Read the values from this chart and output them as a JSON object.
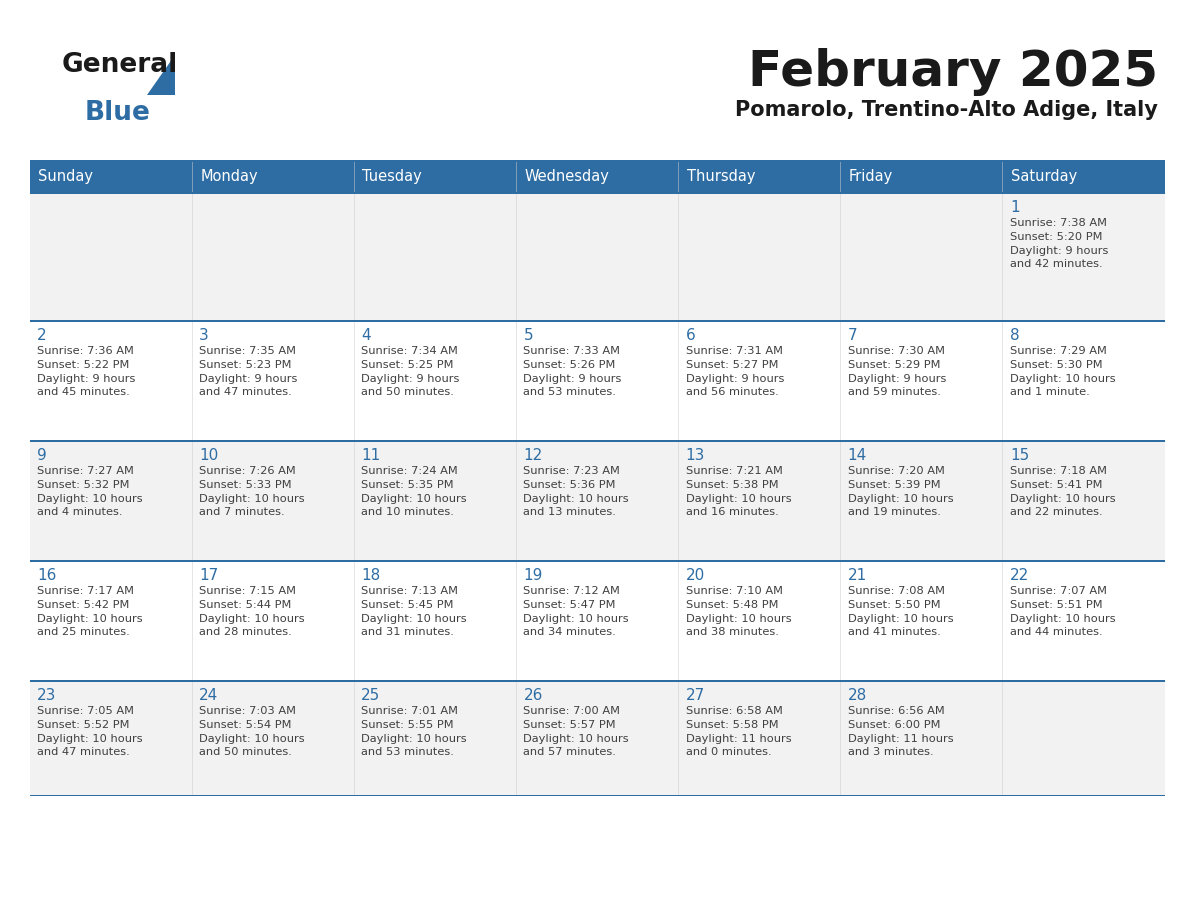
{
  "title": "February 2025",
  "subtitle": "Pomarolo, Trentino-Alto Adige, Italy",
  "days_of_week": [
    "Sunday",
    "Monday",
    "Tuesday",
    "Wednesday",
    "Thursday",
    "Friday",
    "Saturday"
  ],
  "header_bg": "#2E6DA4",
  "header_fg": "#FFFFFF",
  "cell_bg_odd": "#F2F2F2",
  "cell_bg_even": "#FFFFFF",
  "cell_border_color": "#2E6DA4",
  "day_number_color": "#2E6DA4",
  "text_color": "#404040",
  "logo_general_color": "#1a1a1a",
  "logo_blue_color": "#2E6DA4",
  "calendar": [
    [
      null,
      null,
      null,
      null,
      null,
      null,
      {
        "day": "1",
        "sunrise": "7:38 AM",
        "sunset": "5:20 PM",
        "daylight": "9 hours\nand 42 minutes."
      }
    ],
    [
      {
        "day": "2",
        "sunrise": "7:36 AM",
        "sunset": "5:22 PM",
        "daylight": "9 hours\nand 45 minutes."
      },
      {
        "day": "3",
        "sunrise": "7:35 AM",
        "sunset": "5:23 PM",
        "daylight": "9 hours\nand 47 minutes."
      },
      {
        "day": "4",
        "sunrise": "7:34 AM",
        "sunset": "5:25 PM",
        "daylight": "9 hours\nand 50 minutes."
      },
      {
        "day": "5",
        "sunrise": "7:33 AM",
        "sunset": "5:26 PM",
        "daylight": "9 hours\nand 53 minutes."
      },
      {
        "day": "6",
        "sunrise": "7:31 AM",
        "sunset": "5:27 PM",
        "daylight": "9 hours\nand 56 minutes."
      },
      {
        "day": "7",
        "sunrise": "7:30 AM",
        "sunset": "5:29 PM",
        "daylight": "9 hours\nand 59 minutes."
      },
      {
        "day": "8",
        "sunrise": "7:29 AM",
        "sunset": "5:30 PM",
        "daylight": "10 hours\nand 1 minute."
      }
    ],
    [
      {
        "day": "9",
        "sunrise": "7:27 AM",
        "sunset": "5:32 PM",
        "daylight": "10 hours\nand 4 minutes."
      },
      {
        "day": "10",
        "sunrise": "7:26 AM",
        "sunset": "5:33 PM",
        "daylight": "10 hours\nand 7 minutes."
      },
      {
        "day": "11",
        "sunrise": "7:24 AM",
        "sunset": "5:35 PM",
        "daylight": "10 hours\nand 10 minutes."
      },
      {
        "day": "12",
        "sunrise": "7:23 AM",
        "sunset": "5:36 PM",
        "daylight": "10 hours\nand 13 minutes."
      },
      {
        "day": "13",
        "sunrise": "7:21 AM",
        "sunset": "5:38 PM",
        "daylight": "10 hours\nand 16 minutes."
      },
      {
        "day": "14",
        "sunrise": "7:20 AM",
        "sunset": "5:39 PM",
        "daylight": "10 hours\nand 19 minutes."
      },
      {
        "day": "15",
        "sunrise": "7:18 AM",
        "sunset": "5:41 PM",
        "daylight": "10 hours\nand 22 minutes."
      }
    ],
    [
      {
        "day": "16",
        "sunrise": "7:17 AM",
        "sunset": "5:42 PM",
        "daylight": "10 hours\nand 25 minutes."
      },
      {
        "day": "17",
        "sunrise": "7:15 AM",
        "sunset": "5:44 PM",
        "daylight": "10 hours\nand 28 minutes."
      },
      {
        "day": "18",
        "sunrise": "7:13 AM",
        "sunset": "5:45 PM",
        "daylight": "10 hours\nand 31 minutes."
      },
      {
        "day": "19",
        "sunrise": "7:12 AM",
        "sunset": "5:47 PM",
        "daylight": "10 hours\nand 34 minutes."
      },
      {
        "day": "20",
        "sunrise": "7:10 AM",
        "sunset": "5:48 PM",
        "daylight": "10 hours\nand 38 minutes."
      },
      {
        "day": "21",
        "sunrise": "7:08 AM",
        "sunset": "5:50 PM",
        "daylight": "10 hours\nand 41 minutes."
      },
      {
        "day": "22",
        "sunrise": "7:07 AM",
        "sunset": "5:51 PM",
        "daylight": "10 hours\nand 44 minutes."
      }
    ],
    [
      {
        "day": "23",
        "sunrise": "7:05 AM",
        "sunset": "5:52 PM",
        "daylight": "10 hours\nand 47 minutes."
      },
      {
        "day": "24",
        "sunrise": "7:03 AM",
        "sunset": "5:54 PM",
        "daylight": "10 hours\nand 50 minutes."
      },
      {
        "day": "25",
        "sunrise": "7:01 AM",
        "sunset": "5:55 PM",
        "daylight": "10 hours\nand 53 minutes."
      },
      {
        "day": "26",
        "sunrise": "7:00 AM",
        "sunset": "5:57 PM",
        "daylight": "10 hours\nand 57 minutes."
      },
      {
        "day": "27",
        "sunrise": "6:58 AM",
        "sunset": "5:58 PM",
        "daylight": "11 hours\nand 0 minutes."
      },
      {
        "day": "28",
        "sunrise": "6:56 AM",
        "sunset": "6:00 PM",
        "daylight": "11 hours\nand 3 minutes."
      },
      null
    ]
  ]
}
